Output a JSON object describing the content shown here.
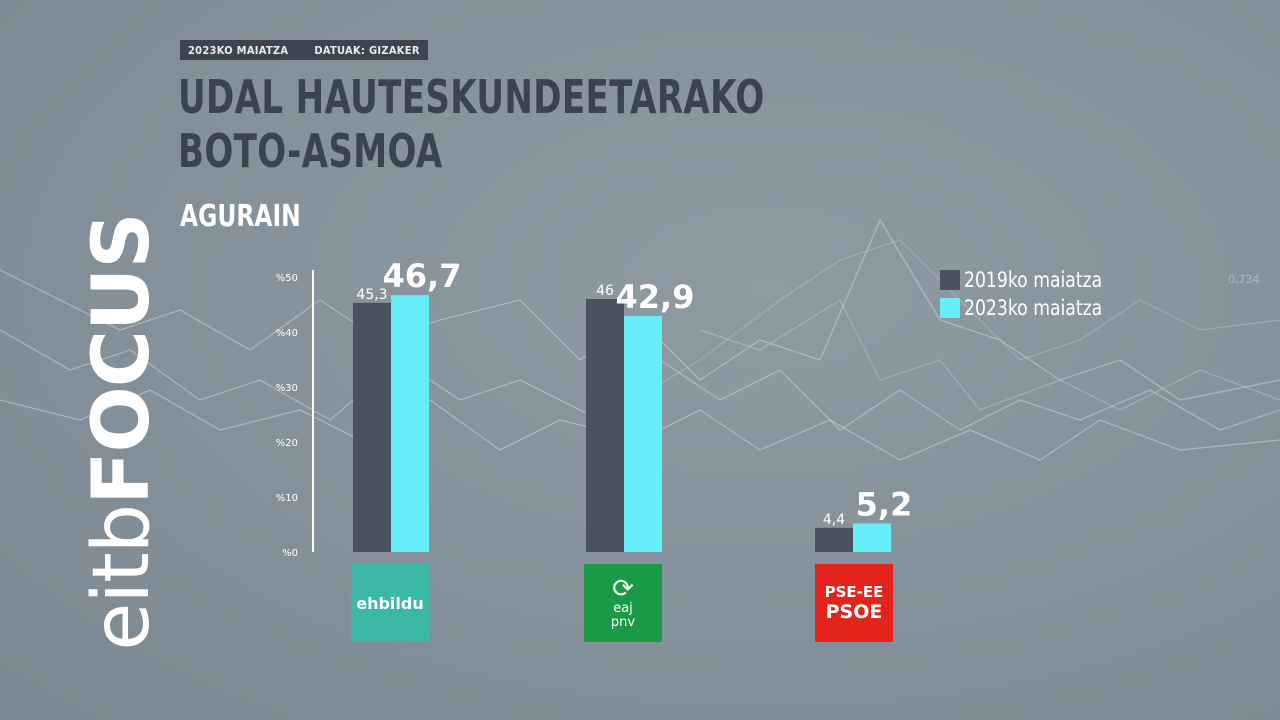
{
  "header": {
    "date_tag": "2023KO MAIATZA",
    "source_tag": "DATUAK: GIZAKER",
    "title_line1": "UDAL HAUTESKUNDEETARAKO",
    "title_line2": "BOTO-ASMOA",
    "subtitle": "AGURAIN"
  },
  "brand": {
    "text_light": "eitb",
    "text_bold": "FOCUS"
  },
  "chart_data": {
    "type": "bar",
    "categories": [
      "EH Bildu",
      "EAJ-PNV",
      "PSE-EE PSOE"
    ],
    "series": [
      {
        "name": "2019ko maiatza",
        "values": [
          45.3,
          46,
          4.4
        ],
        "labels": [
          "45,3",
          "46",
          "4,4"
        ],
        "color": "#4a5260"
      },
      {
        "name": "2023ko maiatza",
        "values": [
          46.7,
          42.9,
          5.2
        ],
        "labels": [
          "46,7",
          "42,9",
          "5,2"
        ],
        "color": "#65eef7"
      }
    ],
    "ylim": [
      0,
      50
    ],
    "yticks": [
      0,
      10,
      20,
      30,
      40,
      50
    ],
    "ytick_labels": [
      "%0",
      "%10",
      "%20",
      "%30",
      "%40",
      "%50"
    ],
    "legend_position": "right"
  },
  "parties": [
    {
      "name": "ehbildu"
    },
    {
      "mark": "⟳",
      "text_top": "eaj",
      "text_bottom": "pnv"
    },
    {
      "line1": "PSE-EE",
      "line2": "PSOE"
    }
  ],
  "colors": {
    "background": "#84919a",
    "title": "#3a4350",
    "dark_bar": "#4a5260",
    "cyan_bar": "#65eef7"
  },
  "background_watermark": "0.734"
}
